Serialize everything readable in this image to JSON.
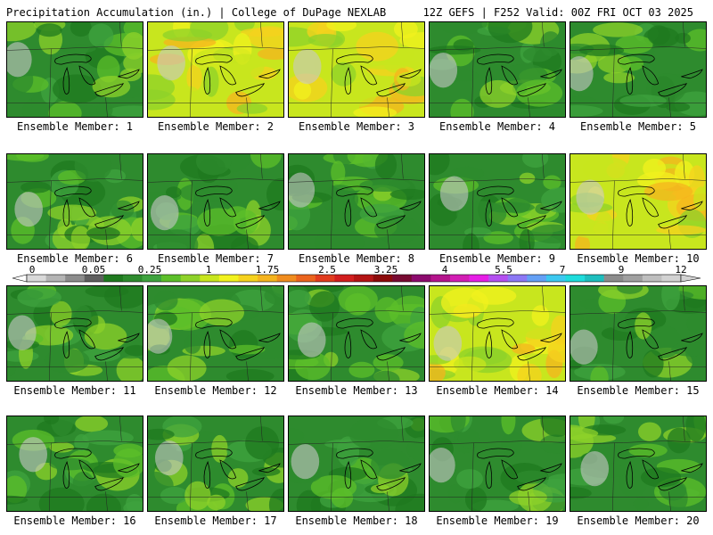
{
  "header": {
    "title": "Precipitation Accumulation (in.) | College of DuPage NEXLAB",
    "run_info": "12Z GEFS | F252 Valid: 00Z FRI OCT 03 2025"
  },
  "colorbar": {
    "labels": [
      "0",
      "0.05",
      "0.25",
      "1",
      "1.75",
      "2.5",
      "3.25",
      "4",
      "5.5",
      "7",
      "9",
      "12"
    ],
    "colors": [
      "#d9d9d9",
      "#b4b4b4",
      "#8c8c8c",
      "#5f5f5f",
      "#1f7a1f",
      "#2e8b2e",
      "#3fa33f",
      "#5cbf2a",
      "#8ed22a",
      "#c8e61e",
      "#f2f21e",
      "#f6d21e",
      "#f5b41e",
      "#f08c1e",
      "#eb641e",
      "#e13c1e",
      "#d21e1e",
      "#b41414",
      "#8c0a0a",
      "#780a32",
      "#8c0a6e",
      "#b4148c",
      "#d21eb4",
      "#e61ee6",
      "#b450f0",
      "#8c78f5",
      "#64a0f5",
      "#3cc8f0",
      "#1edcdc",
      "#1ebebe",
      "#8c8c8c",
      "#a0a0a0",
      "#bebebe",
      "#d2d2d2"
    ]
  },
  "panels": [
    {
      "caption": "Ensemble Member: 1",
      "dominant": "green"
    },
    {
      "caption": "Ensemble Member: 2",
      "dominant": "yellow"
    },
    {
      "caption": "Ensemble Member: 3",
      "dominant": "yellow"
    },
    {
      "caption": "Ensemble Member: 4",
      "dominant": "green"
    },
    {
      "caption": "Ensemble Member: 5",
      "dominant": "green"
    },
    {
      "caption": "Ensemble Member: 6",
      "dominant": "green"
    },
    {
      "caption": "Ensemble Member: 7",
      "dominant": "green"
    },
    {
      "caption": "Ensemble Member: 8",
      "dominant": "green"
    },
    {
      "caption": "Ensemble Member: 9",
      "dominant": "green"
    },
    {
      "caption": "Ensemble Member: 10",
      "dominant": "yellow"
    },
    {
      "caption": "Ensemble Member: 11",
      "dominant": "green"
    },
    {
      "caption": "Ensemble Member: 12",
      "dominant": "green"
    },
    {
      "caption": "Ensemble Member: 13",
      "dominant": "green"
    },
    {
      "caption": "Ensemble Member: 14",
      "dominant": "yellow"
    },
    {
      "caption": "Ensemble Member: 15",
      "dominant": "green"
    },
    {
      "caption": "Ensemble Member: 16",
      "dominant": "green"
    },
    {
      "caption": "Ensemble Member: 17",
      "dominant": "green"
    },
    {
      "caption": "Ensemble Member: 18",
      "dominant": "green"
    },
    {
      "caption": "Ensemble Member: 19",
      "dominant": "green"
    },
    {
      "caption": "Ensemble Member: 20",
      "dominant": "green"
    }
  ]
}
